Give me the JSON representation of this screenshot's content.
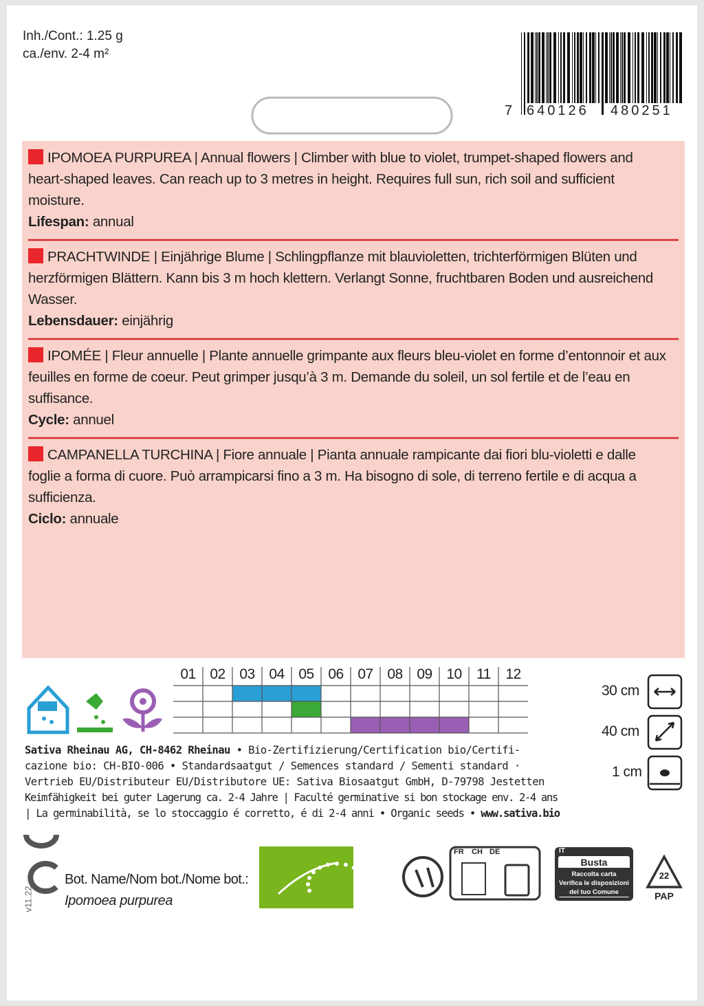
{
  "header": {
    "content": "Inh./Cont.: 1.25 g",
    "area": "ca./env. 2-4 m²",
    "barcode": {
      "first": "7",
      "left": "640126",
      "right": "480251"
    }
  },
  "sections": [
    {
      "name": "IPOMOEA PURPUREA",
      "text": " | Annual flowers | Climber with blue to violet, trumpet-shaped flowers and heart-shaped leaves. Can reach up to 3 metres in height. Requires full sun, rich soil and sufficient moisture.",
      "label": "Lifespan:",
      "value": " annual"
    },
    {
      "name": "PRACHTWINDE",
      "text": " | Einjährige Blume | Schlingpflanze mit blauvioletten, trichterförmigen Blüten und herzförmigen Blättern. Kann bis 3 m hoch klettern. Verlangt Sonne, fruchtbaren Boden und aus­reichend Wasser.",
      "label": "Lebensdauer:",
      "value": " einjährig"
    },
    {
      "name": "IPOMÉE",
      "text": " | Fleur annuelle | Plante annuelle grimpante aux fleurs bleu-violet en forme d’entonnoir et aux feuilles en forme de coeur. Peut grimper jusqu’à 3 m. Demande du soleil, un sol fertile et de l’eau en suffisance.",
      "label": "Cycle:",
      "value": " annuel"
    },
    {
      "name": "CAMPANELLA TURCHINA",
      "text": " | Fiore annuale | Pianta annuale rampicante dai fiori blu-violetti e dalle foglie a forma di cuore. Può arrampicarsi fino a 3 m. Ha bisogno di sole, di terreno fertile e di acqua a sufficienza.",
      "label": "Ciclo:",
      "value": " annuale"
    }
  ],
  "sowing_calendar": {
    "months": [
      "01",
      "02",
      "03",
      "04",
      "05",
      "06",
      "07",
      "08",
      "09",
      "10",
      "11",
      "12"
    ],
    "rows": [
      {
        "color": "#2a9fd6",
        "start": 3,
        "end": 5
      },
      {
        "color": "#3ba935",
        "start": 5,
        "end": 5
      },
      {
        "color": "#9a5fb4",
        "start": 7,
        "end": 10
      }
    ]
  },
  "spacing": {
    "row": "30 cm",
    "plant": "40 cm",
    "depth": "1 cm"
  },
  "legal": {
    "company": "Sativa Rheinau AG, CH-8462 Rheinau",
    "lines": [
      " • Bio-Zertifizierung/Certification bio/Certifi-",
      "cazione bio: CH-BIO-006 • Standardsaatgut / Semences standard / Sementi standard ·",
      "Vertrieb EU/Distributeur EU/Distributore UE: Sativa Biosaatgut GmbH, D-79798 Jestetten",
      "Keimfähigkeit bei guter Lagerung ca. 2-4 Jahre | Faculté germinative si bon stockage env. 2-4 ans",
      "| La germinabilità, se lo stoccaggio é corretto, é di 2-4 anni • Organic seeds • "
    ],
    "website": "www.sativa.bio"
  },
  "version": "v11.22",
  "botanical": {
    "label": "Bot. Name/Nom bot./Nome bot.:",
    "name": "Ipomoea purpurea"
  },
  "recycling": {
    "countries": [
      "FR",
      "CH",
      "DE"
    ],
    "it": {
      "country": "IT",
      "title": "Busta",
      "lines": [
        "Raccolta carta",
        "Verifica le disposizioni",
        "del tuo Comune"
      ]
    },
    "code": "22",
    "material": "PAP"
  }
}
